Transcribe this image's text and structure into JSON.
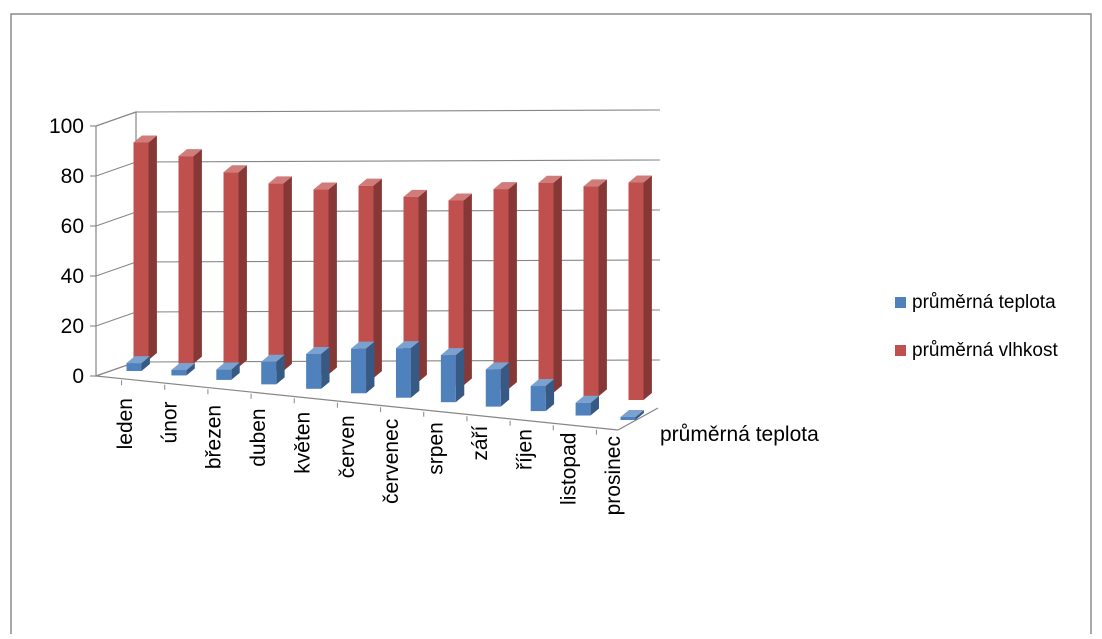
{
  "chart_data": {
    "type": "bar",
    "style": "3d-column",
    "categories": [
      "leden",
      "únor",
      "březen",
      "duben",
      "květen",
      "červen",
      "červenec",
      "srpen",
      "září",
      "říjen",
      "listopad",
      "prosinec"
    ],
    "series": [
      {
        "name": "průměrná teplota",
        "color": "#4F81BD",
        "values": [
          -2,
          -1,
          3,
          8,
          13,
          17,
          19,
          18,
          14,
          9,
          4,
          0
        ]
      },
      {
        "name": "průměrná vlhkost",
        "color": "#C0504D",
        "values": [
          87,
          83,
          78,
          75,
          74,
          77,
          74,
          74,
          80,
          84,
          84,
          87
        ]
      }
    ],
    "yticks": [
      "0",
      "20",
      "40",
      "60",
      "80",
      "100"
    ],
    "ylim": [
      0,
      100
    ],
    "depth_label": "průměrná teplota",
    "grid": true,
    "legend_position": "right"
  }
}
